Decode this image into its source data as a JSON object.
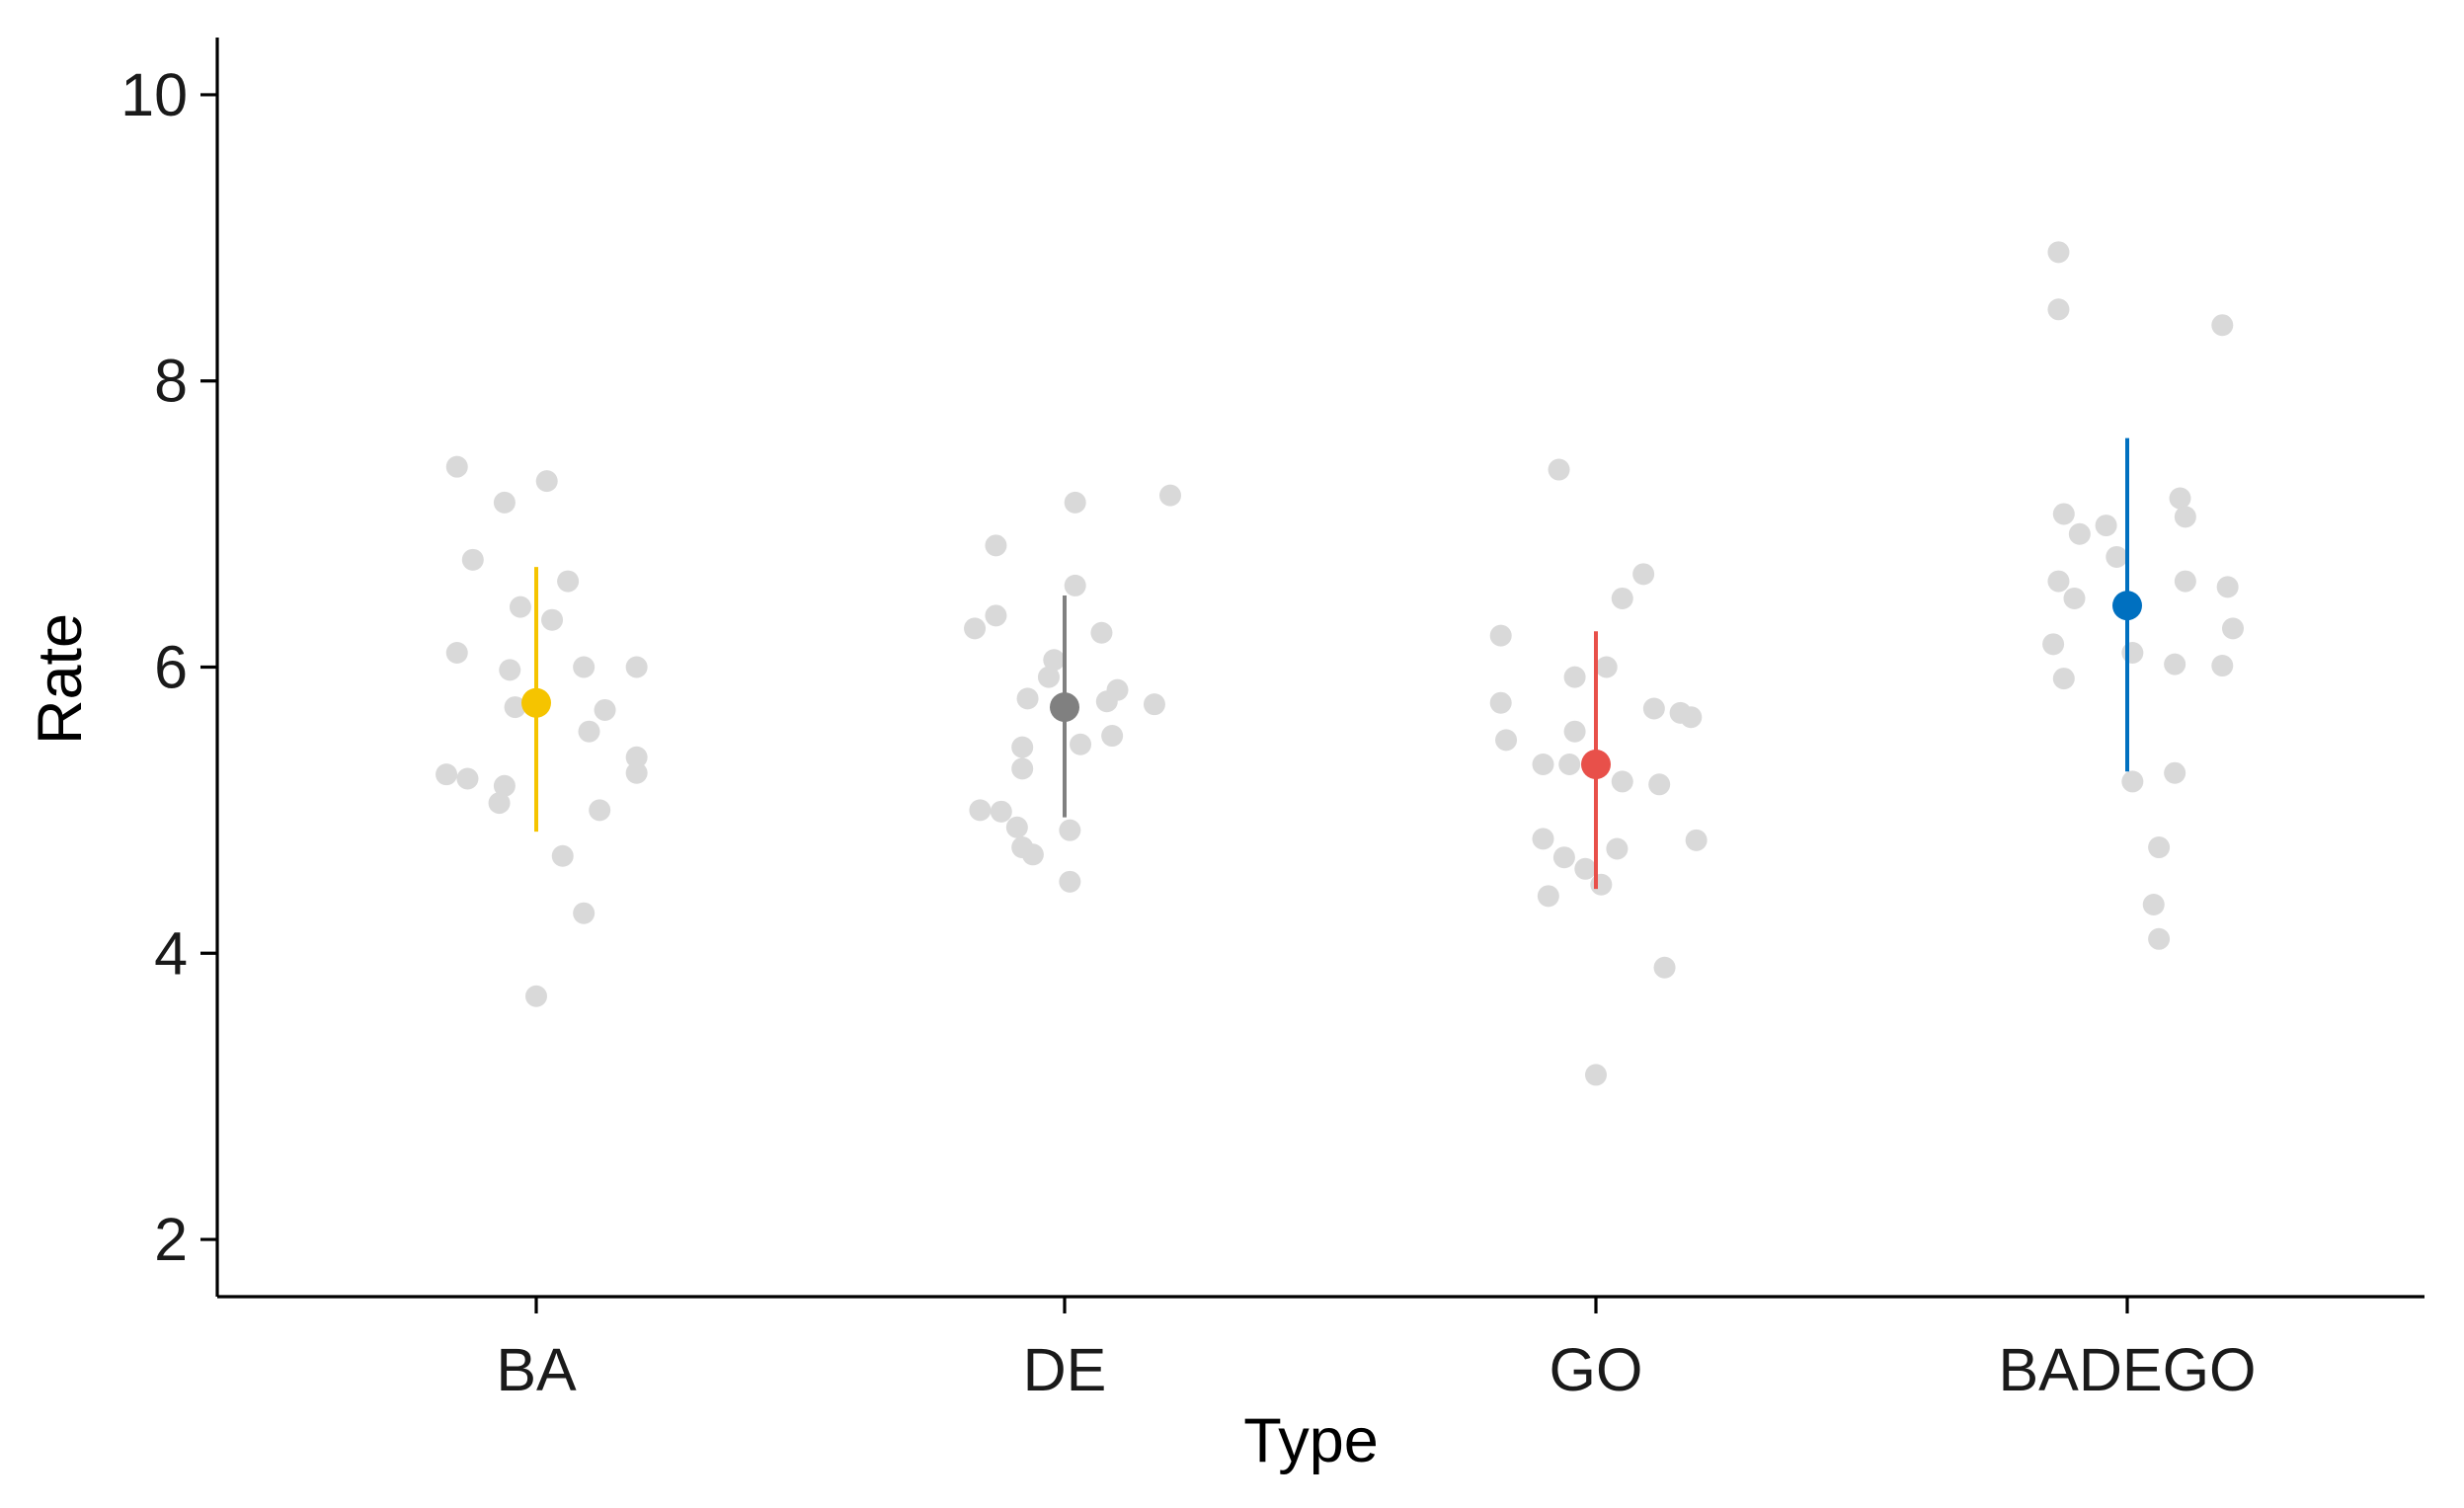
{
  "chart_data": {
    "type": "scatter",
    "title": "",
    "xlabel": "Type",
    "ylabel": "Rate",
    "ylim": [
      1.6,
      10.4
    ],
    "yticks": [
      2,
      4,
      6,
      8,
      10
    ],
    "categories": [
      "BA",
      "DE",
      "GO",
      "BADEGO"
    ],
    "grid": false,
    "legend": "none",
    "summary": [
      {
        "category": "BA",
        "mean": 5.75,
        "lower": 4.85,
        "upper": 6.7,
        "color": "#F5C400"
      },
      {
        "category": "DE",
        "mean": 5.72,
        "lower": 4.95,
        "upper": 6.5,
        "color": "#808080"
      },
      {
        "category": "GO",
        "mean": 5.32,
        "lower": 4.45,
        "upper": 6.25,
        "color": "#E8504A"
      },
      {
        "category": "BADEGO",
        "mean": 6.43,
        "lower": 5.27,
        "upper": 7.6,
        "color": "#0070C0"
      }
    ],
    "points": [
      {
        "category": "BA",
        "values": [
          7.4,
          7.3,
          7.15,
          6.75,
          6.6,
          6.42,
          6.33,
          6.1,
          6.0,
          5.98,
          6.0,
          5.72,
          5.7,
          5.55,
          5.37,
          5.26,
          5.25,
          5.22,
          5.17,
          5.05,
          5.0,
          4.68,
          4.28,
          3.7
        ],
        "offsets": [
          -0.15,
          0.02,
          -0.06,
          -0.12,
          0.06,
          -0.03,
          0.03,
          -0.15,
          0.09,
          -0.05,
          0.19,
          -0.04,
          0.13,
          0.1,
          0.19,
          0.19,
          -0.17,
          -0.13,
          -0.06,
          -0.07,
          0.12,
          0.05,
          0.09,
          0.0
        ]
      },
      {
        "category": "DE",
        "values": [
          7.2,
          7.15,
          6.85,
          6.57,
          6.36,
          6.27,
          6.24,
          6.05,
          5.93,
          5.84,
          5.78,
          5.76,
          5.74,
          5.52,
          5.46,
          5.44,
          5.29,
          5.0,
          4.99,
          4.88,
          4.86,
          4.74,
          4.69,
          4.5
        ],
        "offsets": [
          0.2,
          0.02,
          -0.13,
          0.02,
          -0.13,
          -0.17,
          0.07,
          -0.02,
          -0.03,
          0.1,
          -0.07,
          0.08,
          0.17,
          0.09,
          0.03,
          -0.08,
          -0.08,
          -0.16,
          -0.12,
          -0.09,
          0.01,
          -0.08,
          -0.06,
          0.01
        ]
      },
      {
        "category": "GO",
        "values": [
          7.38,
          6.65,
          6.48,
          6.22,
          6.0,
          5.93,
          5.75,
          5.71,
          5.68,
          5.65,
          5.55,
          5.49,
          5.32,
          5.32,
          5.2,
          5.18,
          4.8,
          4.79,
          4.73,
          4.67,
          4.59,
          4.48,
          4.4,
          3.9,
          3.15
        ],
        "offsets": [
          -0.07,
          0.09,
          0.05,
          -0.18,
          0.02,
          -0.04,
          -0.18,
          0.11,
          0.16,
          0.18,
          -0.04,
          -0.17,
          -0.1,
          -0.05,
          0.05,
          0.12,
          -0.1,
          0.19,
          0.04,
          -0.06,
          -0.02,
          0.01,
          -0.09,
          0.13,
          0.0
        ]
      },
      {
        "category": "BADEGO",
        "values": [
          8.9,
          8.5,
          8.39,
          7.18,
          7.07,
          7.05,
          6.99,
          6.93,
          6.77,
          6.6,
          6.6,
          6.56,
          6.48,
          6.27,
          6.16,
          6.1,
          6.02,
          6.01,
          5.92,
          5.26,
          5.2,
          4.74,
          4.34,
          4.1
        ],
        "offsets": [
          -0.13,
          -0.13,
          0.18,
          0.1,
          -0.12,
          0.11,
          -0.04,
          -0.09,
          -0.02,
          0.11,
          -0.13,
          0.19,
          -0.1,
          0.2,
          -0.14,
          0.01,
          0.09,
          0.18,
          -0.12,
          0.09,
          0.01,
          0.06,
          0.05,
          0.06
        ]
      }
    ]
  }
}
